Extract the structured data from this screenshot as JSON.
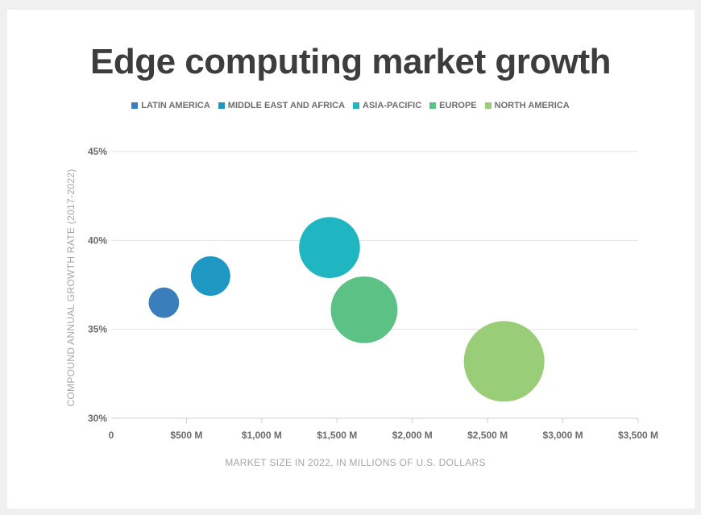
{
  "chart_data": {
    "type": "bubble",
    "title": "Edge computing market growth",
    "xlabel": "MARKET SIZE IN 2022, IN MILLIONS OF U.S. DOLLARS",
    "ylabel": "COMPOUND ANNUAL GROWTH RATE (2017-2022)",
    "xlim": [
      0,
      3500
    ],
    "ylim": [
      30,
      45
    ],
    "x_ticks": [
      0,
      500,
      1000,
      1500,
      2000,
      2500,
      3000,
      3500
    ],
    "x_tick_labels": [
      "0",
      "$500 M",
      "$1,000 M",
      "$1,500 M",
      "$2,000 M",
      "$2,500 M",
      "$3,000 M",
      "$3,500 M"
    ],
    "y_ticks": [
      30,
      35,
      40,
      45
    ],
    "y_tick_labels": [
      "30%",
      "35%",
      "40%",
      "45%"
    ],
    "grid": "horizontal",
    "legend_position": "top",
    "series": [
      {
        "name": "LATIN AMERICA",
        "x": 350,
        "y": 36.5,
        "size": 2.5,
        "color": "#3a7ebb"
      },
      {
        "name": "MIDDLE EAST AND AFRICA",
        "x": 660,
        "y": 38.0,
        "size": 4.2,
        "color": "#1e98c2"
      },
      {
        "name": "ASIA-PACIFIC",
        "x": 1450,
        "y": 39.6,
        "size": 10.0,
        "color": "#1fb5c1"
      },
      {
        "name": "EUROPE",
        "x": 1680,
        "y": 36.1,
        "size": 12.0,
        "color": "#5bc184"
      },
      {
        "name": "NORTH AMERICA",
        "x": 2610,
        "y": 33.2,
        "size": 17.5,
        "color": "#9acd78"
      }
    ]
  }
}
